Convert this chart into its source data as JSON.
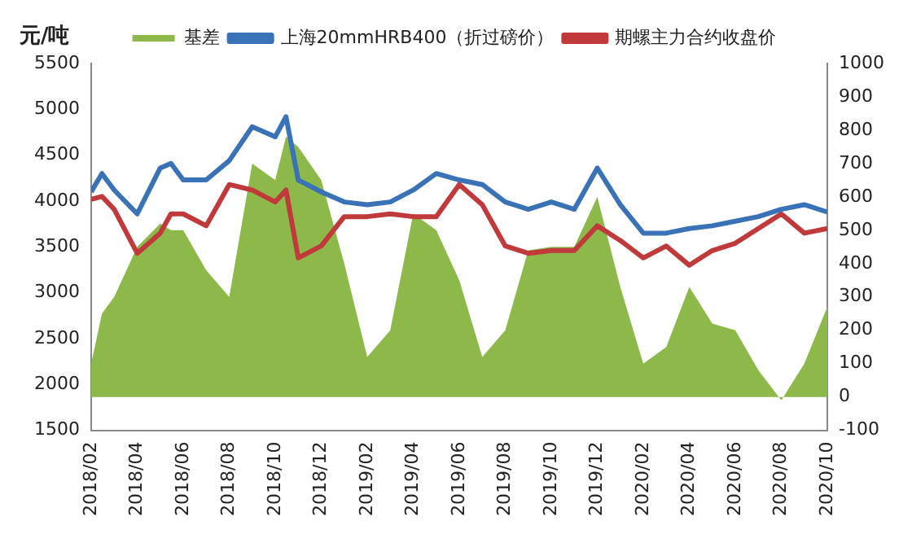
{
  "chart_data": {
    "type": "line",
    "ylabel": "元/吨",
    "legend": "top",
    "grid": false,
    "marker": "none",
    "x": [
      "2018-02",
      "2018-02-15",
      "2018-03",
      "2018-04",
      "2018-05",
      "2018-05-15",
      "2018-06",
      "2018-07",
      "2018-08",
      "2018-09",
      "2018-10",
      "2018-10-15",
      "2018-11",
      "2018-12",
      "2019-01",
      "2019-02",
      "2019-03",
      "2019-04",
      "2019-05",
      "2019-06",
      "2019-07",
      "2019-08",
      "2019-09",
      "2019-10",
      "2019-11",
      "2019-12",
      "2020-01",
      "2020-02",
      "2020-03",
      "2020-04",
      "2020-05",
      "2020-06",
      "2020-07",
      "2020-08",
      "2020-09",
      "2020-10"
    ],
    "xlim": [
      "2018-02",
      "2020-10"
    ],
    "xticks": [
      {
        "value": "2018-02",
        "label": "2018/02"
      },
      {
        "value": "2018-04",
        "label": "2018/04"
      },
      {
        "value": "2018-06",
        "label": "2018/06"
      },
      {
        "value": "2018-08",
        "label": "2018/08"
      },
      {
        "value": "2018-10",
        "label": "2018/10"
      },
      {
        "value": "2018-12",
        "label": "2018/12"
      },
      {
        "value": "2019-02",
        "label": "2019/02"
      },
      {
        "value": "2019-04",
        "label": "2019/04"
      },
      {
        "value": "2019-06",
        "label": "2019/06"
      },
      {
        "value": "2019-08",
        "label": "2019/08"
      },
      {
        "value": "2019-10",
        "label": "2019/10"
      },
      {
        "value": "2019-12",
        "label": "2019/12"
      },
      {
        "value": "2020-02",
        "label": "2020/02"
      },
      {
        "value": "2020-04",
        "label": "2020/04"
      },
      {
        "value": "2020-06",
        "label": "2020/06"
      },
      {
        "value": "2020-08",
        "label": "2020/08"
      },
      {
        "value": "2020-10",
        "label": "2020/10"
      }
    ],
    "ylim": [
      1500,
      5500
    ],
    "yticks": [
      1500,
      2000,
      2500,
      3000,
      3500,
      4000,
      4500,
      5000,
      5500
    ],
    "y2lim": [
      -100,
      1000
    ],
    "y2ticks": [
      -100,
      0,
      100,
      200,
      300,
      400,
      500,
      600,
      700,
      800,
      900,
      1000
    ],
    "series": [
      {
        "name": "基差",
        "type": "area",
        "axis": "y2",
        "color": "#8db84a",
        "values": [
          100,
          250,
          300,
          450,
          520,
          500,
          500,
          380,
          300,
          700,
          650,
          780,
          750,
          650,
          400,
          120,
          200,
          550,
          500,
          350,
          120,
          200,
          440,
          450,
          450,
          600,
          330,
          100,
          150,
          330,
          220,
          200,
          80,
          -10,
          100,
          270
        ]
      },
      {
        "name": "上海20mmHRB400（折过磅价）",
        "type": "line",
        "color": "#3a72b8",
        "values": [
          4100,
          4300,
          4120,
          3860,
          4360,
          4410,
          4230,
          4230,
          4440,
          4810,
          4700,
          4920,
          4230,
          4100,
          3990,
          3960,
          3990,
          4120,
          4300,
          4230,
          4180,
          3990,
          3910,
          3990,
          3910,
          4360,
          3960,
          3650,
          3650,
          3700,
          3730,
          3780,
          3830,
          3910,
          3960,
          3880
        ]
      },
      {
        "name": "期螺主力合约收盘价",
        "type": "line",
        "color": "#c0393b",
        "values": [
          4020,
          4050,
          3910,
          3430,
          3650,
          3860,
          3860,
          3730,
          4180,
          4120,
          3990,
          4120,
          3380,
          3510,
          3830,
          3830,
          3860,
          3830,
          3830,
          4180,
          3960,
          3510,
          3430,
          3460,
          3460,
          3730,
          3570,
          3380,
          3510,
          3300,
          3460,
          3540,
          3700,
          3860,
          3650,
          3700
        ]
      }
    ]
  }
}
